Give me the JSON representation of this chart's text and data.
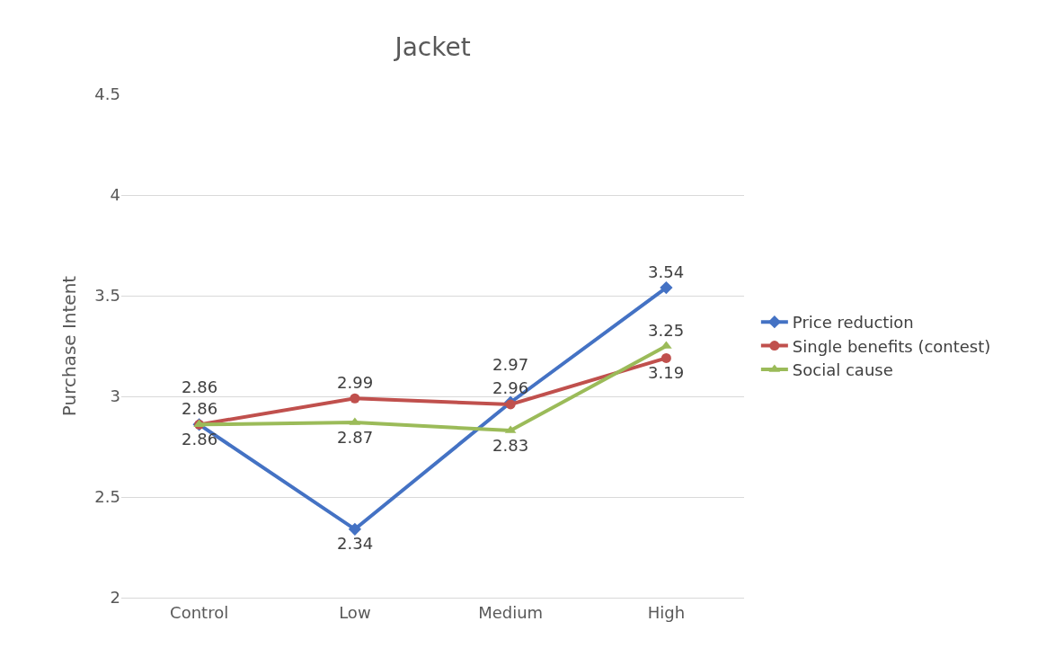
{
  "chart_data": {
    "type": "line",
    "title": "Jacket",
    "ylabel": "Purchase Intent",
    "categories": [
      "Control",
      "Low",
      "Medium",
      "High"
    ],
    "series": [
      {
        "name": "Price reduction",
        "color": "#4472c4",
        "marker": "diamond",
        "values": [
          2.86,
          2.34,
          2.97,
          3.54
        ]
      },
      {
        "name": "Single benefits (contest)",
        "color": "#c0504d",
        "marker": "circle",
        "values": [
          2.86,
          2.99,
          2.96,
          3.19
        ]
      },
      {
        "name": "Social cause",
        "color": "#9bbb59",
        "marker": "triangle",
        "values": [
          2.86,
          2.87,
          2.83,
          3.25
        ]
      }
    ],
    "ylim": [
      2,
      4.5
    ],
    "yticks": [
      2,
      2.5,
      3,
      3.5,
      4,
      4.5
    ],
    "grid": "y",
    "legend": "right",
    "data_labels": true,
    "line_style": "solid"
  }
}
